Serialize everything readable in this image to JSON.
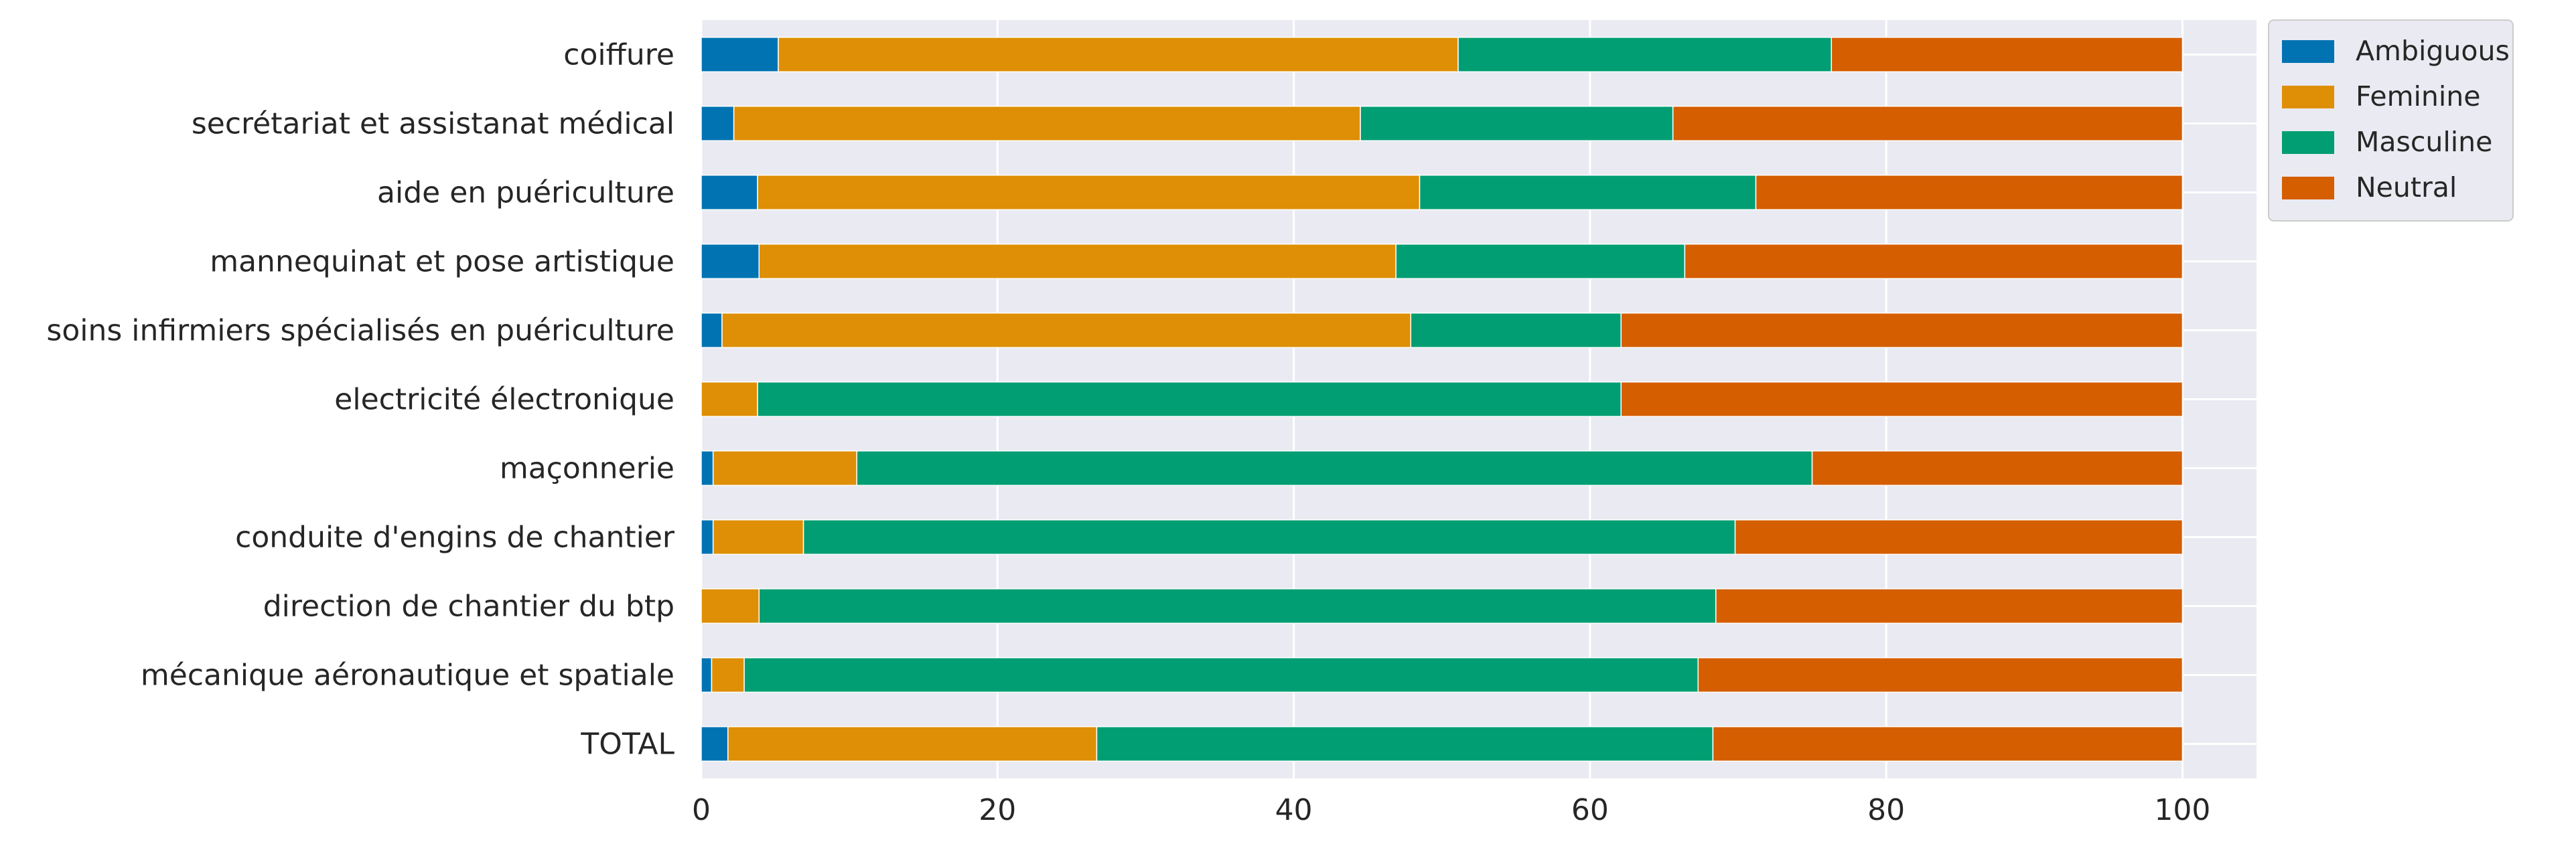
{
  "chart_data": {
    "type": "bar",
    "orientation": "horizontal",
    "stacked": true,
    "title": "",
    "xlabel": "",
    "ylabel": "",
    "xlim": [
      0,
      105
    ],
    "xticks": [
      "0",
      "20",
      "40",
      "60",
      "80",
      "100"
    ],
    "grid": true,
    "legend_position": "outside-top-right",
    "categories": [
      "coiffure",
      "secrétariat et assistanat médical",
      "aide en puériculture",
      "mannequinat et pose artistique",
      "soins infirmiers spécialisés en puériculture",
      "electricité électronique",
      "maçonnerie",
      "conduite d'engins de chantier",
      "direction de chantier du btp",
      "mécanique aéronautique et spatiale",
      "TOTAL"
    ],
    "series": [
      {
        "name": "Ambiguous",
        "color": "#0173b2",
        "values": [
          5.2,
          2.2,
          3.8,
          3.9,
          1.4,
          0.0,
          0.8,
          0.8,
          0.0,
          0.7,
          1.8
        ]
      },
      {
        "name": "Feminine",
        "color": "#de8f05",
        "values": [
          45.9,
          42.3,
          44.7,
          43.0,
          46.5,
          3.8,
          9.7,
          6.1,
          3.9,
          2.2,
          24.9
        ]
      },
      {
        "name": "Masculine",
        "color": "#029e73",
        "values": [
          25.2,
          21.1,
          22.7,
          19.5,
          14.2,
          58.3,
          64.5,
          62.9,
          64.6,
          64.4,
          41.6
        ]
      },
      {
        "name": "Neutral",
        "color": "#d55e00",
        "values": [
          23.7,
          34.4,
          28.8,
          33.6,
          37.9,
          37.9,
          25.0,
          30.2,
          31.5,
          32.7,
          31.7
        ]
      }
    ]
  }
}
